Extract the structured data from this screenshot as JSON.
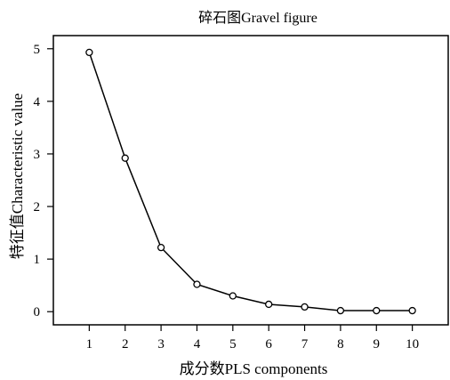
{
  "chart_data": {
    "type": "line",
    "title": "碎石图Gravel figure",
    "xlabel": "成分数PLS components",
    "ylabel": "特征值Characteristic value",
    "x": [
      1,
      2,
      3,
      4,
      5,
      6,
      7,
      8,
      9,
      10
    ],
    "series": [
      {
        "values": [
          4.93,
          2.92,
          1.22,
          0.52,
          0.3,
          0.14,
          0.09,
          0.02,
          0.02,
          0.02
        ]
      }
    ],
    "xticks": [
      "1",
      "2",
      "3",
      "4",
      "5",
      "6",
      "7",
      "8",
      "9",
      "10"
    ],
    "yticks": [
      "0",
      "1",
      "2",
      "3",
      "4",
      "5"
    ],
    "xlim": [
      0.0,
      11.0
    ],
    "ylim": [
      -0.25,
      5.25
    ],
    "grid": false,
    "legend": "none",
    "line_color": "#000000",
    "marker": "open-circle"
  }
}
